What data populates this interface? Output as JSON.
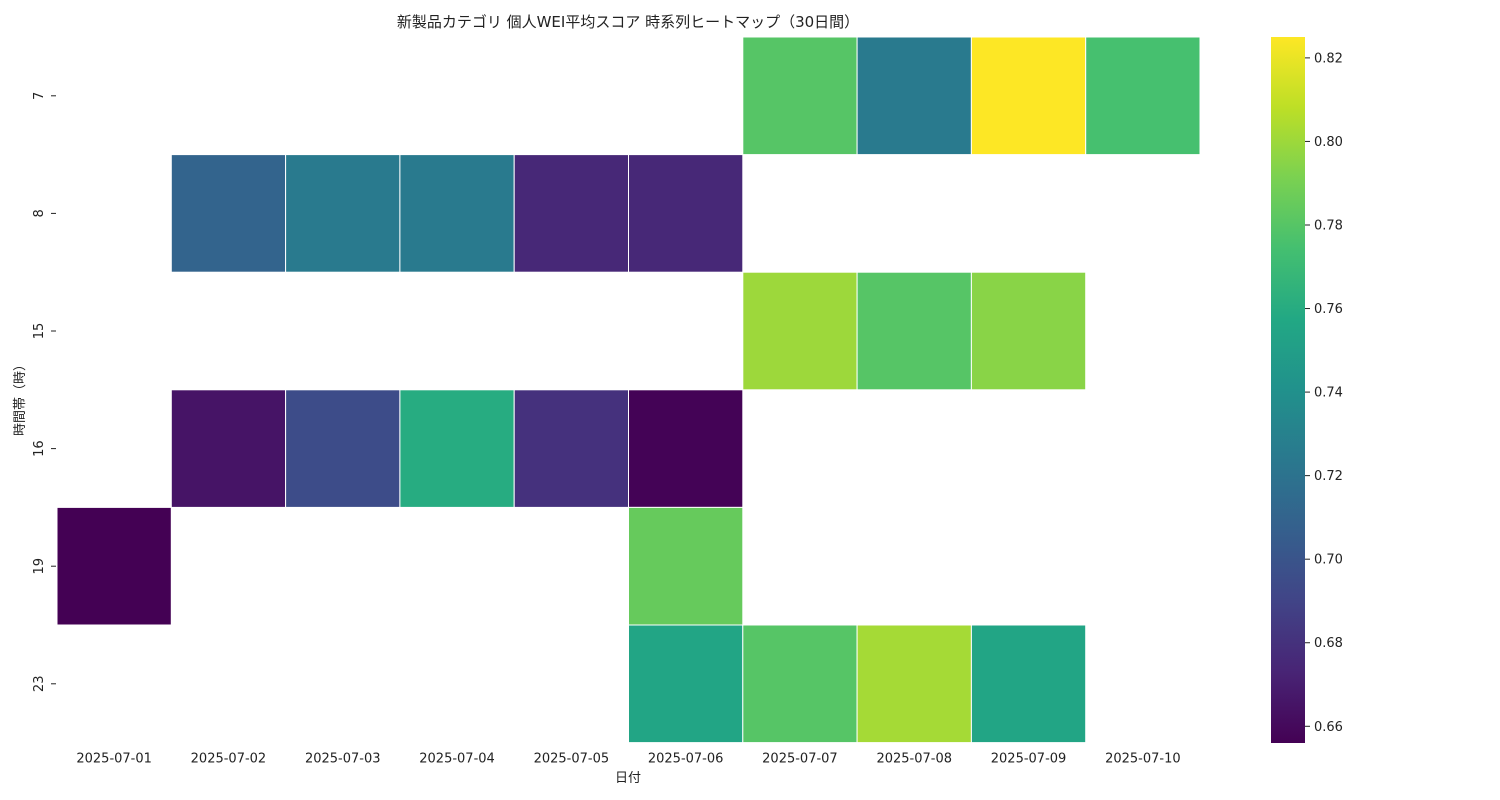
{
  "chart_data": {
    "type": "heatmap",
    "title": "新製品カテゴリ 個人WEI平均スコア 時系列ヒートマップ（30日間）",
    "xlabel": "日付",
    "ylabel": "時間帯（時）",
    "x": [
      "2025-07-01",
      "2025-07-02",
      "2025-07-03",
      "2025-07-04",
      "2025-07-05",
      "2025-07-06",
      "2025-07-07",
      "2025-07-08",
      "2025-07-09",
      "2025-07-10"
    ],
    "y": [
      "7",
      "8",
      "15",
      "16",
      "19",
      "23"
    ],
    "values": [
      [
        null,
        null,
        null,
        null,
        null,
        null,
        0.78,
        0.725,
        0.825,
        0.775
      ],
      [
        null,
        0.71,
        0.725,
        0.725,
        0.675,
        0.675,
        null,
        null,
        null,
        null
      ],
      [
        null,
        null,
        null,
        null,
        null,
        null,
        0.8,
        0.78,
        0.795,
        null
      ],
      [
        null,
        0.665,
        0.695,
        0.76,
        0.68,
        0.657,
        null,
        null,
        null,
        null
      ],
      [
        0.656,
        null,
        null,
        null,
        null,
        0.785,
        null,
        null,
        null,
        null
      ],
      [
        null,
        null,
        null,
        null,
        null,
        0.755,
        0.78,
        0.802,
        0.755,
        null
      ]
    ],
    "colorbar": {
      "min": 0.656,
      "max": 0.825,
      "ticks": [
        0.66,
        0.68,
        0.7,
        0.72,
        0.74,
        0.76,
        0.78,
        0.8,
        0.82
      ],
      "tick_labels": [
        "0.66",
        "0.68",
        "0.70",
        "0.72",
        "0.74",
        "0.76",
        "0.78",
        "0.80",
        "0.82"
      ],
      "colormap": "viridis"
    },
    "grid": false
  }
}
